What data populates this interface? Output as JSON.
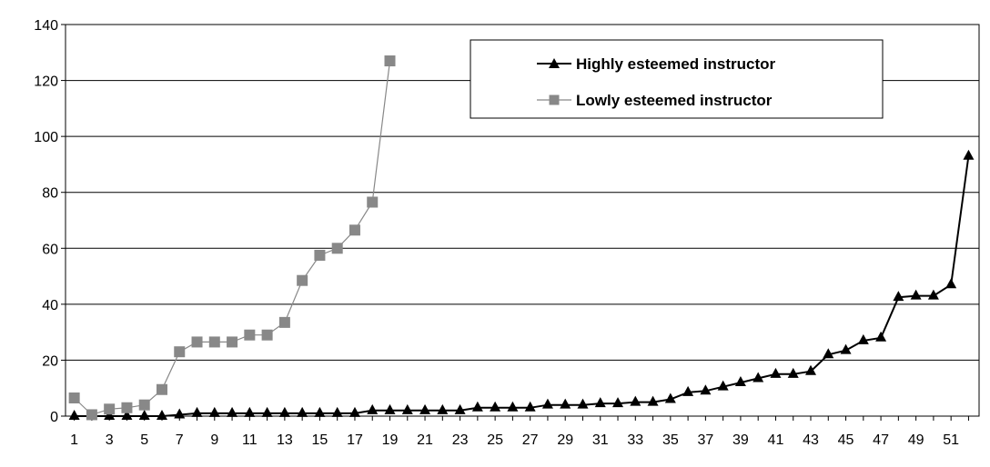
{
  "chart_data": {
    "type": "line",
    "title": "",
    "xlabel": "",
    "ylabel": "",
    "ylim": [
      0,
      140
    ],
    "yticks": [
      "0",
      "20",
      "40",
      "60",
      "80",
      "100",
      "120",
      "140"
    ],
    "xticks": [
      "1",
      "3",
      "5",
      "7",
      "9",
      "11",
      "13",
      "15",
      "17",
      "19",
      "21",
      "23",
      "25",
      "27",
      "29",
      "31",
      "33",
      "35",
      "37",
      "39",
      "41",
      "43",
      "45",
      "47",
      "49",
      "51"
    ],
    "grid": "horizontal",
    "legend_position": "top-center",
    "series": [
      {
        "name": "Highly esteemed instructor",
        "color": "#000000",
        "marker": "triangle",
        "x": [
          1,
          2,
          3,
          4,
          5,
          6,
          7,
          8,
          9,
          10,
          11,
          12,
          13,
          14,
          15,
          16,
          17,
          18,
          19,
          20,
          21,
          22,
          23,
          24,
          25,
          26,
          27,
          28,
          29,
          30,
          31,
          32,
          33,
          34,
          35,
          36,
          37,
          38,
          39,
          40,
          41,
          42,
          43,
          44,
          45,
          46,
          47,
          48,
          49,
          50,
          51,
          52
        ],
        "values": [
          0,
          0,
          0,
          0,
          0,
          0,
          0.5,
          1,
          1,
          1,
          1,
          1,
          1,
          1,
          1,
          1,
          1,
          2,
          2,
          2,
          2,
          2,
          2,
          3,
          3,
          3,
          3,
          4,
          4,
          4,
          4.5,
          4.5,
          5,
          5,
          6,
          8.5,
          9,
          10.5,
          12,
          13.5,
          15,
          15,
          16,
          22,
          23.5,
          27,
          28,
          42.5,
          43,
          43,
          47,
          93
        ]
      },
      {
        "name": "Lowly esteemed instructor",
        "color": "#888888",
        "marker": "square",
        "x": [
          1,
          2,
          3,
          4,
          5,
          6,
          7,
          8,
          9,
          10,
          11,
          12,
          13,
          14,
          15,
          16,
          17,
          18,
          19
        ],
        "values": [
          6.5,
          0.5,
          2.5,
          3,
          4,
          9.5,
          23,
          26.5,
          26.5,
          26.5,
          29,
          29,
          33.5,
          48.5,
          57.5,
          60,
          66.5,
          76.5,
          127
        ]
      }
    ]
  }
}
